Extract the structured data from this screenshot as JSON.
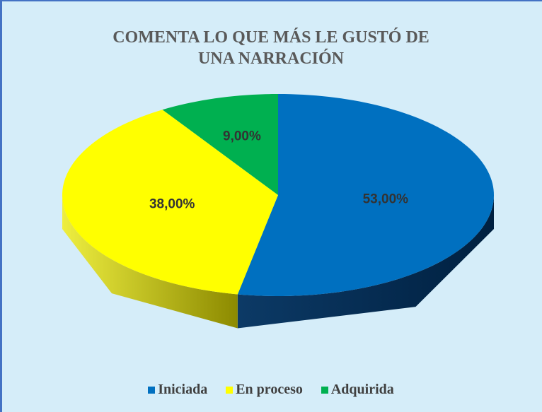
{
  "chart_data": {
    "type": "pie",
    "title": "COMENTA LO QUE MÁS LE GUSTÓ DE UNA NARRACIÓN",
    "categories": [
      "Iniciada",
      "En proceso",
      "Adquirida"
    ],
    "values": [
      53,
      38,
      9
    ],
    "value_labels": [
      "53,00%",
      "38,00%",
      "9,00%"
    ],
    "colors": [
      "#0070c0",
      "#ffff00",
      "#00b050"
    ],
    "legend": "bottom"
  }
}
